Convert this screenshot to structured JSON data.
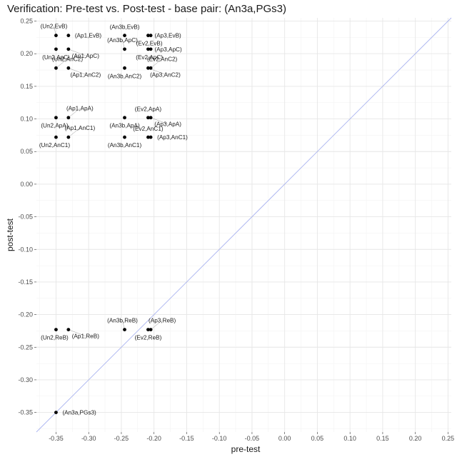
{
  "chart_data": {
    "type": "scatter",
    "title": "Verification: Pre-test vs. Post-test - base pair: (An3a,PGs3)",
    "xlabel": "pre-test",
    "ylabel": "post-test",
    "xlim": [
      -0.38,
      0.255
    ],
    "ylim": [
      -0.38,
      0.255
    ],
    "x_ticks": [
      -0.35,
      -0.3,
      -0.25,
      -0.2,
      -0.15,
      -0.1,
      -0.05,
      0.0,
      0.05,
      0.1,
      0.15,
      0.2,
      0.25
    ],
    "x_tick_labels": [
      "-0.35",
      "-0.30",
      "-0.25",
      "-0.20",
      "-0.15",
      "-0.10",
      "-0.05",
      "0.00",
      "0.05",
      "0.10",
      "0.15",
      "0.20",
      "0.25"
    ],
    "y_ticks": [
      0.25,
      0.2,
      0.15,
      0.1,
      0.05,
      0.0,
      -0.05,
      -0.1,
      -0.15,
      -0.2,
      -0.25,
      -0.3,
      -0.35
    ],
    "y_tick_labels": [
      "0.25",
      "0.20",
      "0.15",
      "0.10",
      "0.05",
      "0.00",
      "-0.05",
      "-0.10",
      "-0.15",
      "-0.20",
      "-0.25",
      "-0.30",
      "-0.35"
    ],
    "grid": true,
    "reference_line": {
      "type": "identity",
      "color": "#aab4f0"
    },
    "point_color": "#000000",
    "points": [
      {
        "label": "(Un2,EvB)",
        "x": -0.35,
        "y": 0.228,
        "label_pos": "above-left"
      },
      {
        "label": "(Ap1,EvB)",
        "x": -0.331,
        "y": 0.228,
        "label_pos": "right"
      },
      {
        "label": "(An3b,EvB)",
        "x": -0.245,
        "y": 0.228,
        "label_pos": "above"
      },
      {
        "label": "(Ap3,EvB)",
        "x": -0.209,
        "y": 0.228,
        "label_pos": "right"
      },
      {
        "label": "(Ev2,EvB)",
        "x": -0.205,
        "y": 0.228,
        "label_pos": "below-left"
      },
      {
        "label": "(Un2,ApC)",
        "x": -0.35,
        "y": 0.207,
        "label_pos": "below"
      },
      {
        "label": "(Ap1,ApC)",
        "x": -0.331,
        "y": 0.207,
        "label_pos": "below-right"
      },
      {
        "label": "(An3b,ApC)",
        "x": -0.245,
        "y": 0.207,
        "label_pos": "above-left"
      },
      {
        "label": "(Ap3,ApC)",
        "x": -0.209,
        "y": 0.207,
        "label_pos": "right"
      },
      {
        "label": "(Ev2,ApC)",
        "x": -0.205,
        "y": 0.207,
        "label_pos": "below-left"
      },
      {
        "label": "(Un2,AnC2)",
        "x": -0.35,
        "y": 0.178,
        "label_pos": "above-right"
      },
      {
        "label": "(Ap1,AnC2)",
        "x": -0.331,
        "y": 0.178,
        "label_pos": "below-right"
      },
      {
        "label": "(An3b,AnC2)",
        "x": -0.245,
        "y": 0.178,
        "label_pos": "below"
      },
      {
        "label": "(Ap3,AnC2)",
        "x": -0.209,
        "y": 0.178,
        "label_pos": "below-right"
      },
      {
        "label": "(Ev2,AnC2)",
        "x": -0.205,
        "y": 0.178,
        "label_pos": "above-right"
      },
      {
        "label": "(Un2,ApA)",
        "x": -0.35,
        "y": 0.102,
        "label_pos": "below-left"
      },
      {
        "label": "(Ap1,ApA)",
        "x": -0.331,
        "y": 0.102,
        "label_pos": "above-right"
      },
      {
        "label": "(An3b,ApA)",
        "x": -0.245,
        "y": 0.102,
        "label_pos": "below"
      },
      {
        "label": "(Ev2,ApA)",
        "x": -0.209,
        "y": 0.102,
        "label_pos": "above"
      },
      {
        "label": "(Ap3,ApA)",
        "x": -0.205,
        "y": 0.102,
        "label_pos": "below-right"
      },
      {
        "label": "(Un2,AnC1)",
        "x": -0.35,
        "y": 0.072,
        "label_pos": "below-left"
      },
      {
        "label": "(Ap1,AnC1)",
        "x": -0.331,
        "y": 0.072,
        "label_pos": "above-right"
      },
      {
        "label": "(An3b,AnC1)",
        "x": -0.245,
        "y": 0.072,
        "label_pos": "below"
      },
      {
        "label": "(Ev2,AnC1)",
        "x": -0.209,
        "y": 0.072,
        "label_pos": "above"
      },
      {
        "label": "(Ap3,AnC1)",
        "x": -0.205,
        "y": 0.072,
        "label_pos": "right"
      },
      {
        "label": "(Un2,ReB)",
        "x": -0.35,
        "y": -0.223,
        "label_pos": "below-left"
      },
      {
        "label": "(Ap1,ReB)",
        "x": -0.331,
        "y": -0.223,
        "label_pos": "below-right"
      },
      {
        "label": "(An3b,ReB)",
        "x": -0.245,
        "y": -0.223,
        "label_pos": "above-left"
      },
      {
        "label": "(Ev2,ReB)",
        "x": -0.209,
        "y": -0.223,
        "label_pos": "below"
      },
      {
        "label": "(Ap3,ReB)",
        "x": -0.205,
        "y": -0.223,
        "label_pos": "above-right"
      },
      {
        "label": "(An3a,PGs3)",
        "x": -0.35,
        "y": -0.35,
        "label_pos": "right"
      }
    ]
  }
}
